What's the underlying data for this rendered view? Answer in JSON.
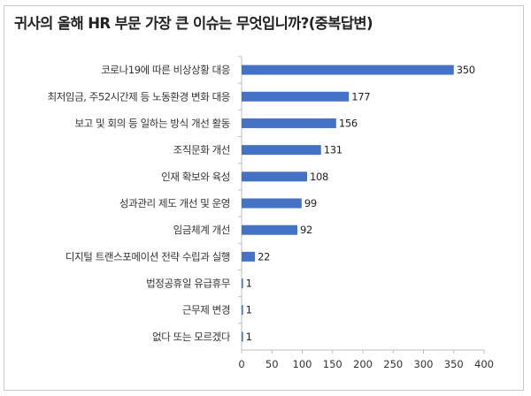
{
  "title": "귀사의 올해 HR 부문 가장 큰 이슈는 무엇입니까?(중복답변)",
  "chart_data": {
    "type": "bar",
    "orientation": "horizontal",
    "title": "귀사의 올해 HR 부문 가장 큰 이슈는 무엇입니까?(중복답변)",
    "categories": [
      "코로나19에 따른 비상상황 대응",
      "최저임금, 주52시간제 등 노동환경 변화 대응",
      "보고 및 회의 등 일하는 방식 개선 활동",
      "조직문화 개선",
      "인재 확보와 육성",
      "성과관리 제도 개선 및 운영",
      "임금체계 개선",
      "디지털 트랜스포메이션 전략 수립과 실행",
      "법정공휴일 유급휴무",
      "근무제 변경",
      "없다 또는 모르겠다"
    ],
    "values": [
      350,
      177,
      156,
      131,
      108,
      99,
      92,
      22,
      1,
      1,
      1
    ],
    "xlim": [
      0,
      400
    ],
    "xticks": [
      0,
      50,
      100,
      150,
      200,
      250,
      300,
      350,
      400
    ],
    "bar_color": "#4472c4",
    "axis_color": "#bfbfbf",
    "grid": false,
    "legend": false
  }
}
